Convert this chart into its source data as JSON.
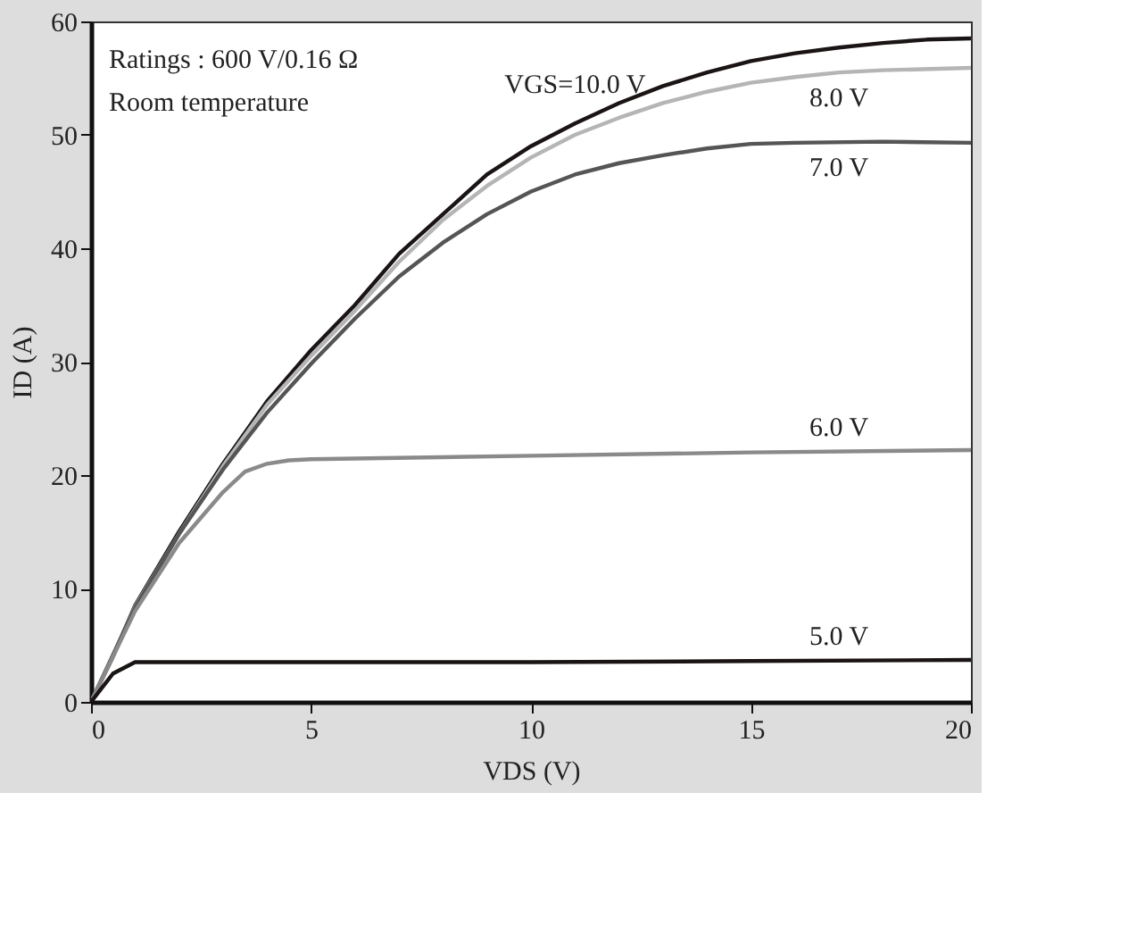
{
  "chart_data": {
    "type": "line",
    "xlabel": "VDS (V)",
    "ylabel": "ID (A)",
    "xlim": [
      0,
      20
    ],
    "ylim": [
      0,
      60
    ],
    "xticks": [
      0,
      5,
      10,
      15,
      20
    ],
    "yticks": [
      0,
      10,
      20,
      30,
      40,
      50,
      60
    ],
    "grid": false,
    "line_style": "solid",
    "marker": "none",
    "annotations": [
      "Ratings : 600 V/0.16 Ω",
      "Room temperature"
    ],
    "series": [
      {
        "name": "VGS=10.0 V",
        "color": "#1a1414",
        "x": [
          0,
          0.5,
          1,
          2,
          3,
          4,
          5,
          6,
          7,
          8,
          9,
          10,
          11,
          12,
          13,
          14,
          15,
          16,
          17,
          18,
          19,
          20
        ],
        "values": [
          0,
          4,
          8.5,
          15,
          21,
          26.5,
          31,
          35,
          39.5,
          43,
          46.5,
          49,
          51,
          52.8,
          54.3,
          55.5,
          56.5,
          57.2,
          57.7,
          58.1,
          58.4,
          58.5
        ]
      },
      {
        "name": "8.0 V",
        "color": "#b5b5b5",
        "x": [
          0,
          0.5,
          1,
          2,
          3,
          4,
          5,
          6,
          7,
          8,
          9,
          10,
          11,
          12,
          13,
          14,
          15,
          16,
          17,
          18,
          20
        ],
        "values": [
          0,
          4,
          8.4,
          14.8,
          20.8,
          26.2,
          30.5,
          34.5,
          38.8,
          42.5,
          45.5,
          48,
          50,
          51.5,
          52.8,
          53.8,
          54.6,
          55.1,
          55.5,
          55.7,
          55.9
        ]
      },
      {
        "name": "7.0 V",
        "color": "#555555",
        "x": [
          0,
          1,
          2,
          3,
          4,
          5,
          6,
          7,
          8,
          9,
          10,
          11,
          12,
          13,
          14,
          15,
          16,
          18,
          20
        ],
        "values": [
          0,
          8.3,
          14.8,
          20.5,
          25.5,
          29.8,
          33.8,
          37.5,
          40.5,
          43,
          45,
          46.5,
          47.5,
          48.2,
          48.8,
          49.2,
          49.3,
          49.4,
          49.3
        ]
      },
      {
        "name": "6.0 V",
        "color": "#8a8a8a",
        "x": [
          0,
          1,
          2,
          3,
          3.5,
          4,
          4.5,
          5,
          10,
          15,
          20
        ],
        "values": [
          0,
          8,
          14,
          18.5,
          20.3,
          21,
          21.3,
          21.4,
          21.7,
          22,
          22.2
        ]
      },
      {
        "name": "5.0 V",
        "color": "#1a1414",
        "x": [
          0,
          0.5,
          1,
          5,
          10,
          15,
          20
        ],
        "values": [
          0,
          2.5,
          3.5,
          3.5,
          3.5,
          3.6,
          3.7
        ]
      }
    ]
  }
}
